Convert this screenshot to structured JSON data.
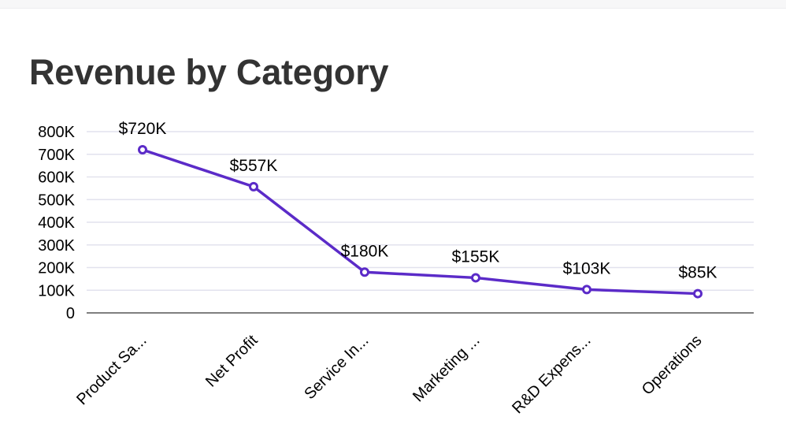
{
  "title": "Revenue by Category",
  "colors": {
    "line": "#5b2bc8",
    "grid": "#e2e2ee",
    "baseline": "#555555",
    "title": "#333333"
  },
  "chart_data": {
    "type": "line",
    "title": "Revenue by Category",
    "xlabel": "",
    "ylabel": "",
    "categories": [
      "Product Sa...",
      "Net Profit",
      "Service In...",
      "Marketing ...",
      "R&D Expens...",
      "Operations"
    ],
    "values": [
      720000,
      557000,
      180000,
      155000,
      103000,
      85000
    ],
    "data_labels": [
      "$720K",
      "$557K",
      "$180K",
      "$155K",
      "$103K",
      "$85K"
    ],
    "ylim": [
      0,
      800000
    ],
    "y_ticks": [
      0,
      100000,
      200000,
      300000,
      400000,
      500000,
      600000,
      700000,
      800000
    ],
    "y_tick_labels": [
      "0",
      "100K",
      "200K",
      "300K",
      "400K",
      "500K",
      "600K",
      "700K",
      "800K"
    ],
    "grid": true,
    "legend": "none",
    "marker": "hollow-circle"
  }
}
